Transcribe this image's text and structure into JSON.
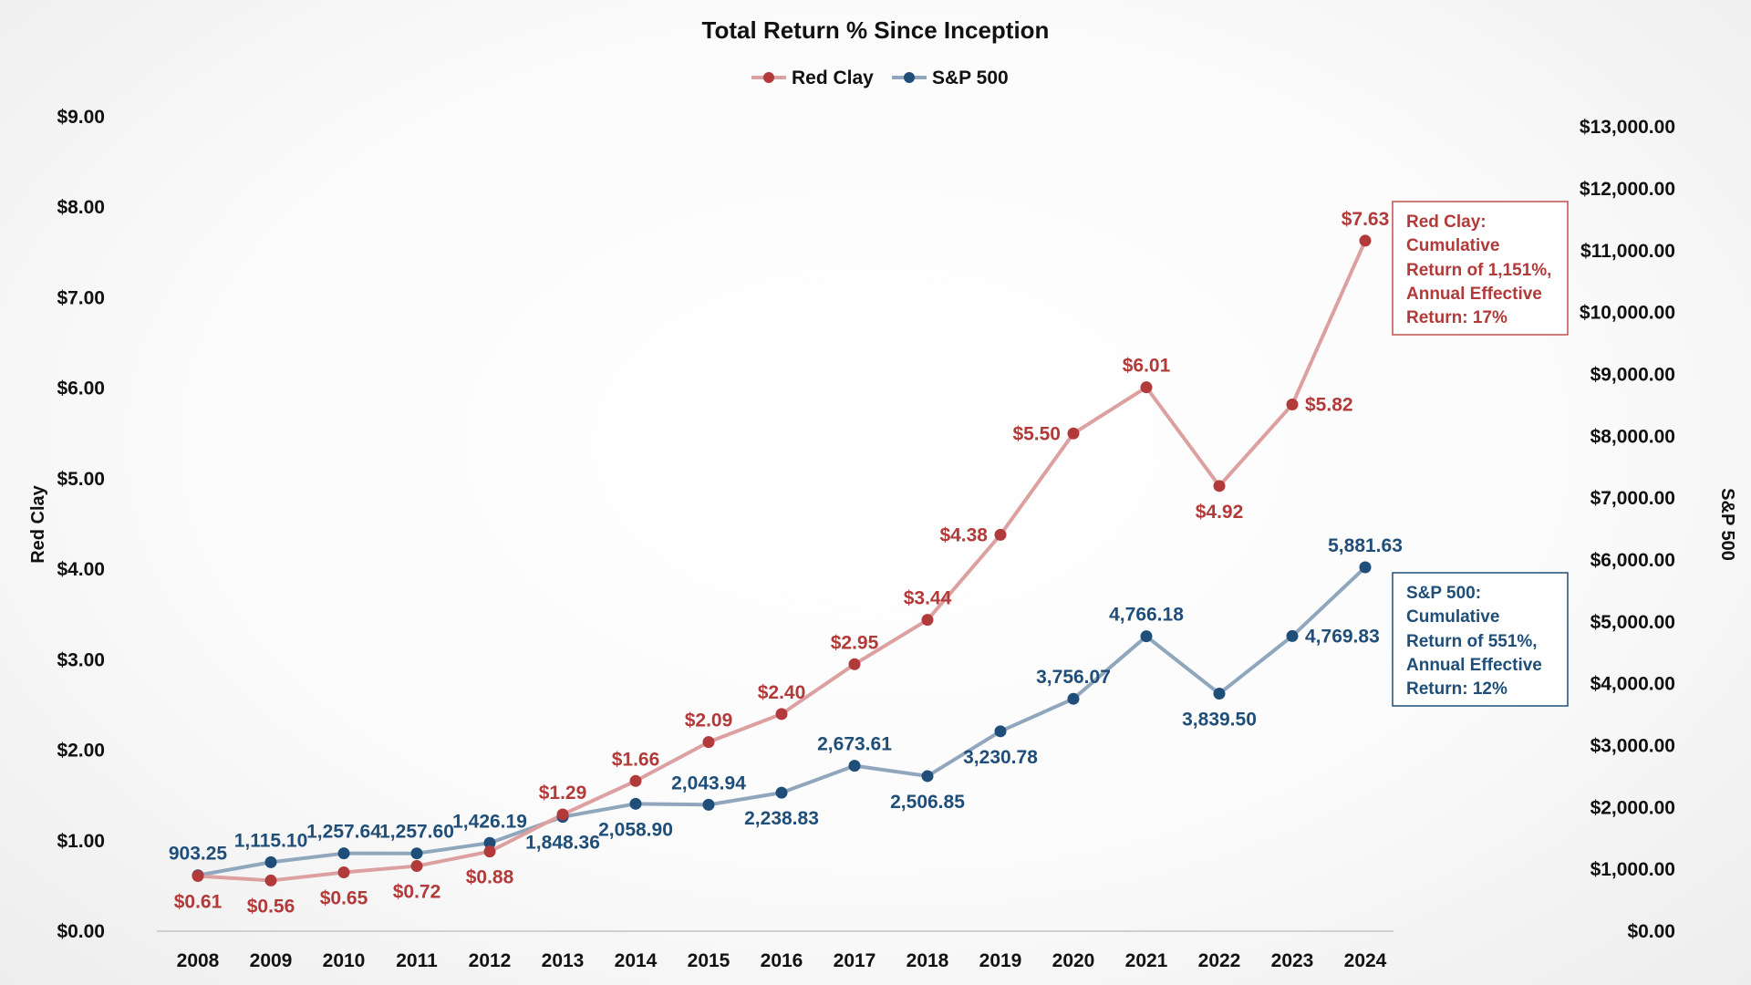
{
  "chart_data": {
    "type": "line",
    "title": "Total Return % Since Inception",
    "categories": [
      "2008",
      "2009",
      "2010",
      "2011",
      "2012",
      "2013",
      "2014",
      "2015",
      "2016",
      "2017",
      "2018",
      "2019",
      "2020",
      "2021",
      "2022",
      "2023",
      "2024"
    ],
    "series": [
      {
        "name": "Red Clay",
        "axis": "left",
        "color": "#b23a3a",
        "line_color": "#dca0a0",
        "values": [
          0.61,
          0.56,
          0.65,
          0.72,
          0.88,
          1.29,
          1.66,
          2.09,
          2.4,
          2.95,
          3.44,
          4.38,
          5.5,
          6.01,
          4.92,
          5.82,
          7.63
        ],
        "labels": [
          "$0.61",
          "$0.56",
          "$0.65",
          "$0.72",
          "$0.88",
          "$1.29",
          "$1.66",
          "$2.09",
          "$2.40",
          "$2.95",
          "$3.44",
          "$4.38",
          "$5.50",
          "$6.01",
          "$4.92",
          "$5.82",
          "$7.63"
        ],
        "label_pos": [
          "below",
          "below",
          "below",
          "below",
          "below",
          "above",
          "above",
          "above",
          "above",
          "above",
          "above",
          "left",
          "left",
          "above",
          "below",
          "right",
          "above"
        ]
      },
      {
        "name": "S&P 500",
        "axis": "right",
        "color": "#1f4e79",
        "line_color": "#8fa6bd",
        "values": [
          903.25,
          1115.1,
          1257.64,
          1257.6,
          1426.19,
          1848.36,
          2058.9,
          2043.94,
          2238.83,
          2673.61,
          2506.85,
          3230.78,
          3756.07,
          4766.18,
          3839.5,
          4769.83,
          5881.63
        ],
        "labels": [
          "903.25",
          "1,115.10",
          "1,257.64",
          "1,257.60",
          "1,426.19",
          "1,848.36",
          "2,058.90",
          "2,043.94",
          "2,238.83",
          "2,673.61",
          "2,506.85",
          "3,230.78",
          "3,756.07",
          "4,766.18",
          "3,839.50",
          "4,769.83",
          "5,881.63"
        ],
        "label_pos": [
          "above",
          "above",
          "above",
          "above",
          "above",
          "below",
          "below",
          "above",
          "below",
          "above",
          "below",
          "below",
          "above",
          "above",
          "below",
          "right",
          "above"
        ]
      }
    ],
    "left_axis": {
      "title": "Red Clay",
      "min": 0,
      "max": 9,
      "step": 1,
      "tick_labels": [
        "$0.00",
        "$1.00",
        "$2.00",
        "$3.00",
        "$4.00",
        "$5.00",
        "$6.00",
        "$7.00",
        "$8.00",
        "$9.00"
      ]
    },
    "right_axis": {
      "title": "S&P 500",
      "min": 0,
      "max": 13400,
      "step": 1000,
      "tick_labels": [
        "$0.00",
        "$1,000.00",
        "$2,000.00",
        "$3,000.00",
        "$4,000.00",
        "$5,000.00",
        "$6,000.00",
        "$7,000.00",
        "$8,000.00",
        "$9,000.00",
        "$10,000.00",
        "$11,000.00",
        "$12,000.00",
        "$13,000.00"
      ]
    },
    "legend": {
      "placement": "top-center"
    },
    "grid": false,
    "annotations": [
      {
        "series": "Red Clay",
        "lines": [
          "Red Clay:",
          "Cumulative",
          "Return of 1,151%,",
          "Annual Effective",
          "Return: 17%"
        ]
      },
      {
        "series": "S&P 500",
        "lines": [
          "S&P 500:",
          "Cumulative",
          "Return of 551%,",
          "Annual Effective",
          "Return: 12%"
        ]
      }
    ]
  }
}
